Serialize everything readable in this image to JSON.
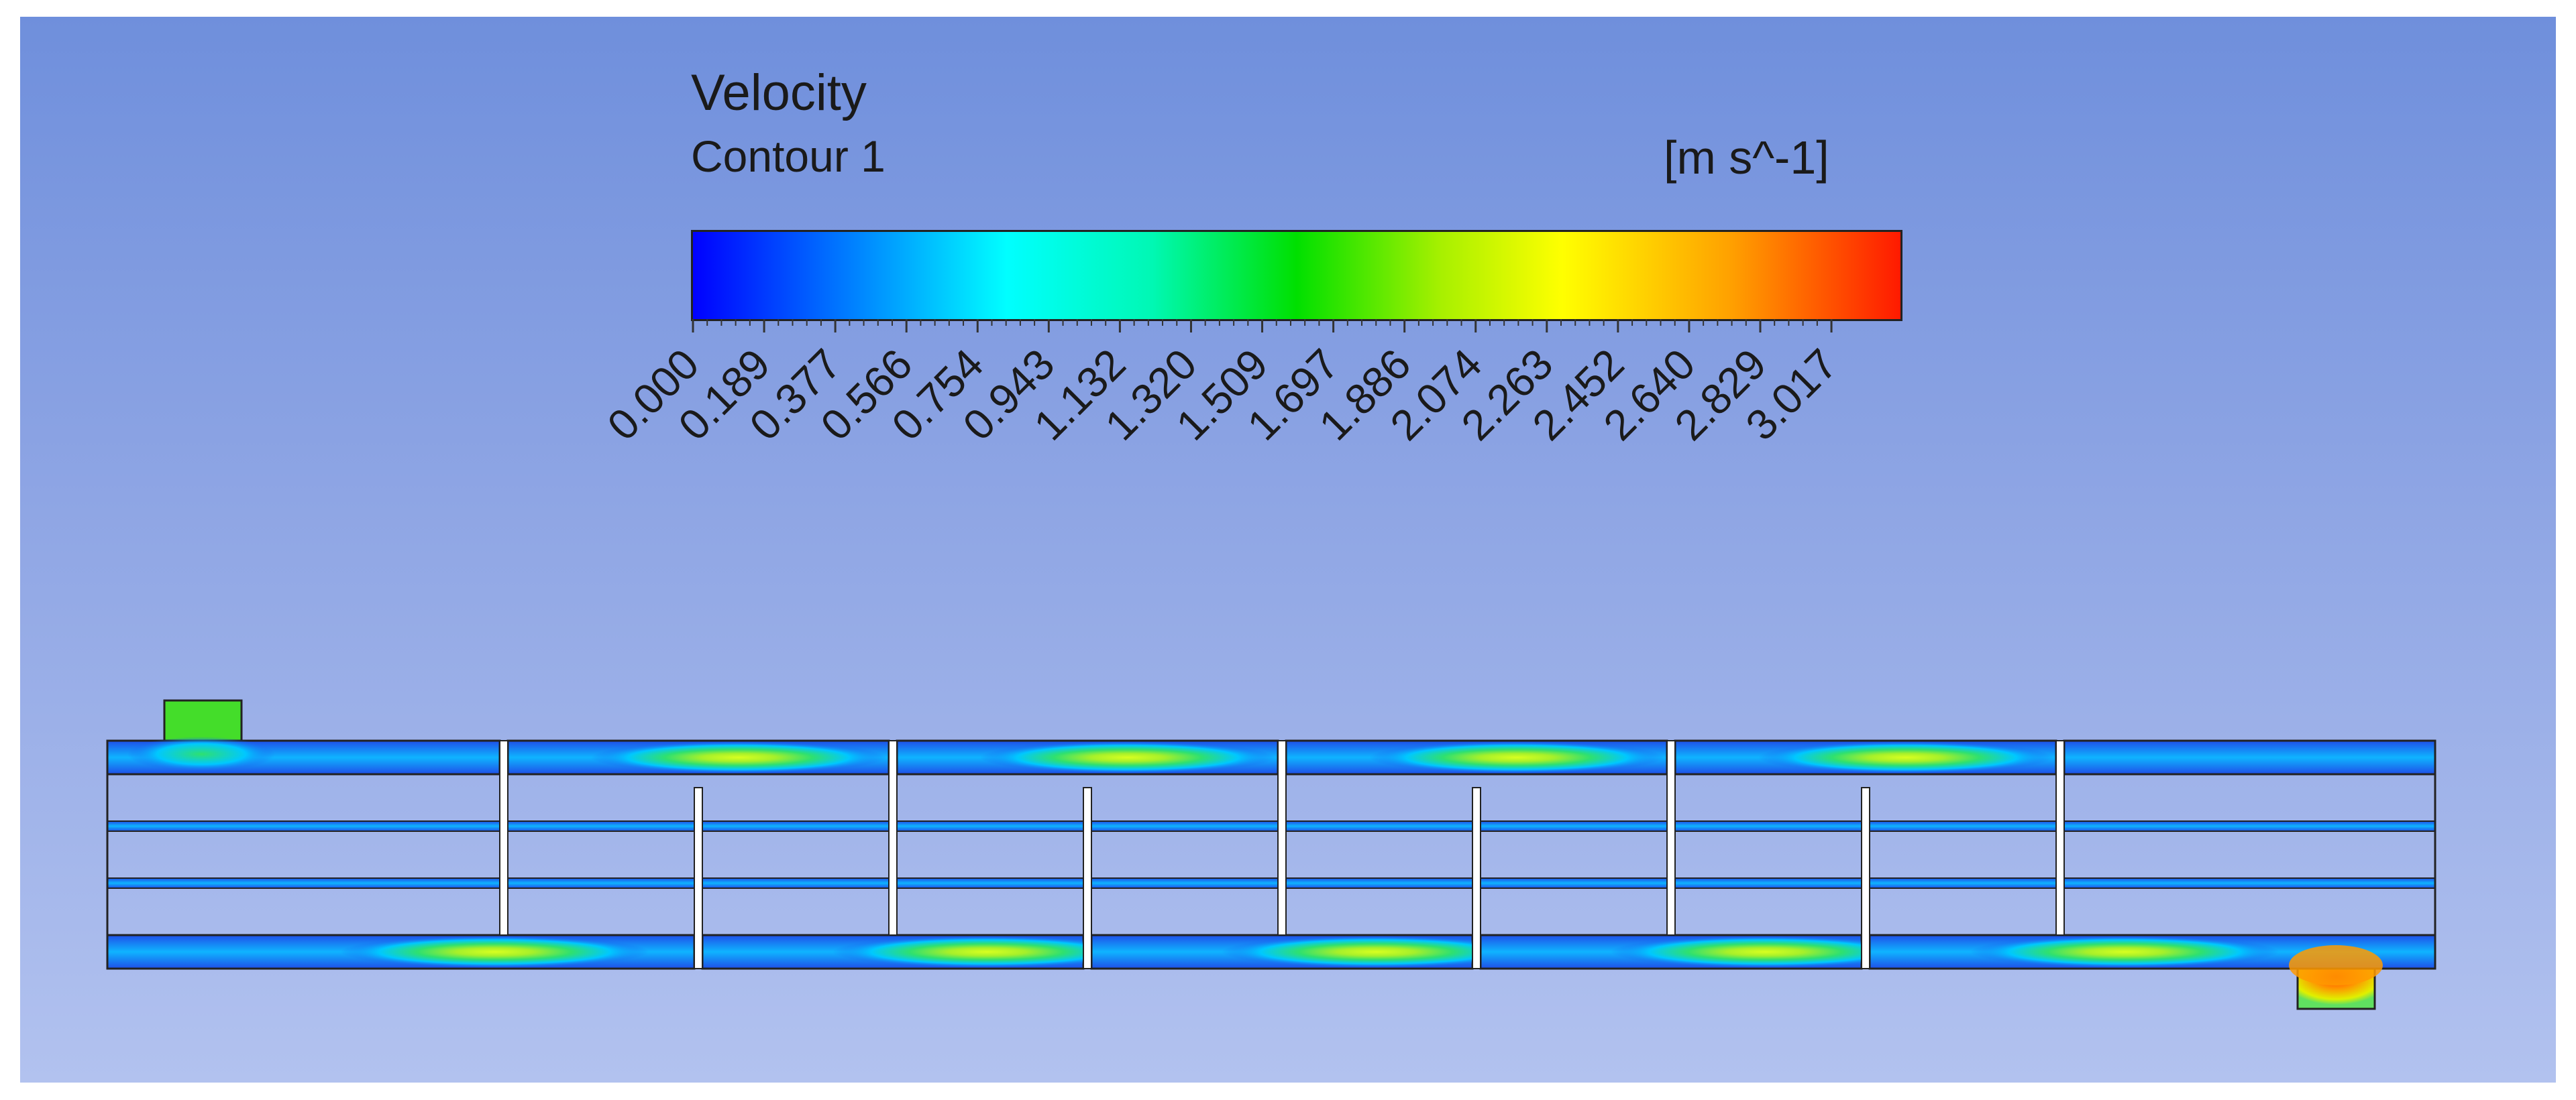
{
  "legend": {
    "title": "Velocity",
    "subtitle": "Contour 1",
    "unit": "[m s^-1]",
    "ticks": [
      "0.000",
      "0.189",
      "0.377",
      "0.566",
      "0.754",
      "0.943",
      "1.132",
      "1.320",
      "1.509",
      "1.697",
      "1.886",
      "2.074",
      "2.263",
      "2.452",
      "2.640",
      "2.829",
      "3.017"
    ],
    "colormap": [
      "#0000ff",
      "#0088ff",
      "#00ffff",
      "#00f8b4",
      "#00e000",
      "#a8f000",
      "#ffff00",
      "#ffa000",
      "#ff1a00"
    ]
  },
  "colors": {
    "background_top": "#6f8fdc",
    "background_bottom": "#b2c2ef",
    "outline": "#222222"
  }
}
